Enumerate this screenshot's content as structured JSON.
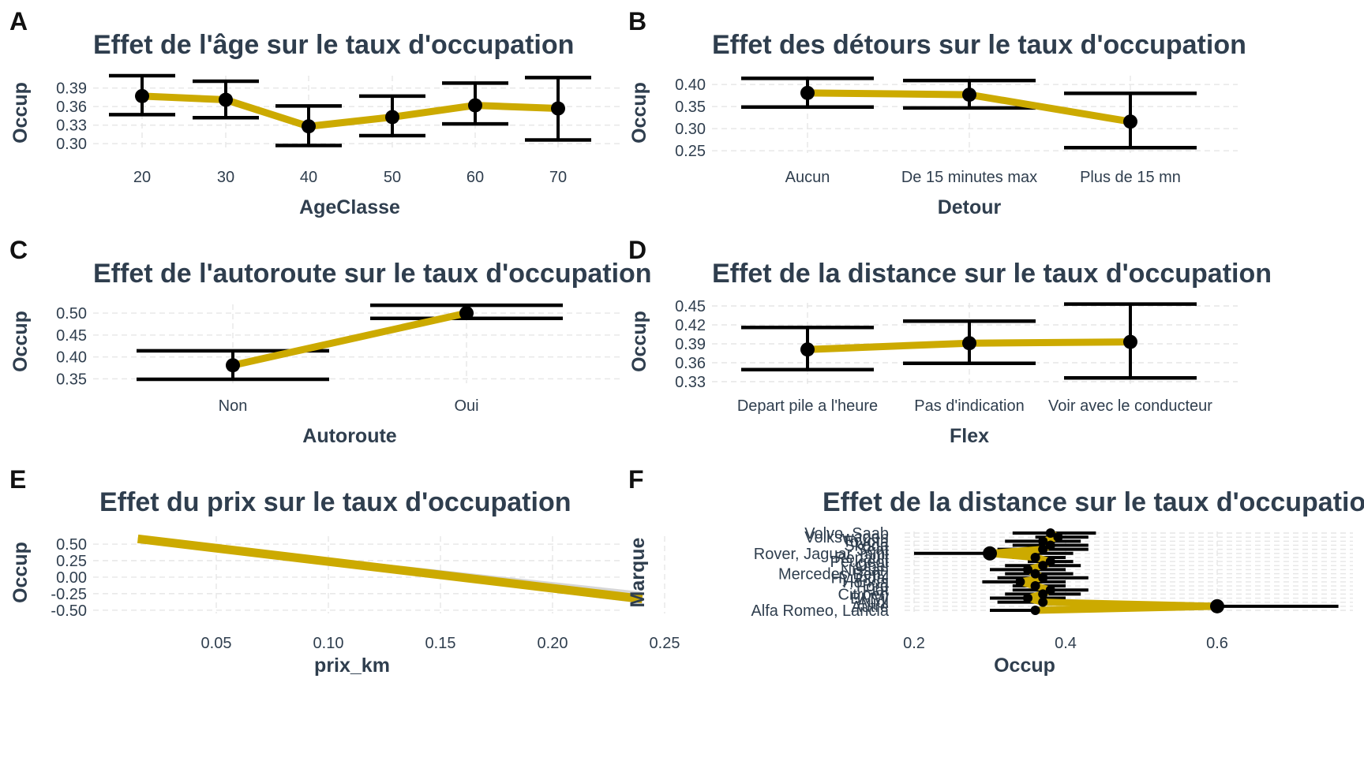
{
  "colors": {
    "line": "#ccaa00",
    "point": "#000000",
    "ribbon": "#cfcfcf",
    "text": "#2f3e4e"
  },
  "chart_data": [
    {
      "panel": "A",
      "type": "line",
      "title": "Effet de l'âge sur le taux d'occupation",
      "xlabel": "AgeClasse",
      "ylabel": "Occup",
      "categories": [
        "20",
        "30",
        "40",
        "50",
        "60",
        "70"
      ],
      "values": [
        0.377,
        0.371,
        0.328,
        0.343,
        0.362,
        0.357
      ],
      "lower": [
        0.347,
        0.342,
        0.297,
        0.313,
        0.332,
        0.306
      ],
      "upper": [
        0.41,
        0.401,
        0.361,
        0.377,
        0.398,
        0.407
      ],
      "yticks": [
        "0.30",
        "0.33",
        "0.36",
        "0.39"
      ],
      "ylim": [
        0.29,
        0.41
      ]
    },
    {
      "panel": "B",
      "type": "line",
      "title": "Effet des détours sur le taux d'occupation",
      "xlabel": "Detour",
      "ylabel": "Occup",
      "categories": [
        "Aucun",
        "De 15 minutes max",
        "Plus de 15 mn"
      ],
      "values": [
        0.381,
        0.377,
        0.316
      ],
      "lower": [
        0.349,
        0.347,
        0.257
      ],
      "upper": [
        0.414,
        0.409,
        0.38
      ],
      "yticks": [
        "0.25",
        "0.30",
        "0.35",
        "0.40"
      ],
      "ylim": [
        0.245,
        0.42
      ]
    },
    {
      "panel": "C",
      "type": "line",
      "title": "Effet de l'autoroute sur le taux d'occupation",
      "xlabel": "Autoroute",
      "ylabel": "Occup",
      "categories": [
        "Non",
        "Oui"
      ],
      "values": [
        0.381,
        0.5
      ],
      "lower": [
        0.349,
        0.488
      ],
      "upper": [
        0.414,
        0.518
      ],
      "yticks": [
        "0.35",
        "0.40",
        "0.45",
        "0.50"
      ],
      "ylim": [
        0.34,
        0.52
      ]
    },
    {
      "panel": "D",
      "type": "line",
      "title": "Effet de la distance sur le taux d'occupation",
      "xlabel": "Flex",
      "ylabel": "Occup",
      "categories": [
        "Depart pile a l'heure",
        "Pas d'indication",
        "Voir avec le conducteur"
      ],
      "values": [
        0.381,
        0.391,
        0.393
      ],
      "lower": [
        0.349,
        0.359,
        0.336
      ],
      "upper": [
        0.416,
        0.426,
        0.453
      ],
      "yticks": [
        "0.33",
        "0.36",
        "0.39",
        "0.42",
        "0.45"
      ],
      "ylim": [
        0.325,
        0.455
      ]
    },
    {
      "panel": "E",
      "type": "line",
      "title": "Effet du prix sur le taux d'occupation",
      "xlabel": "prix_km",
      "ylabel": "Occup",
      "x": [
        0.015,
        0.24
      ],
      "y": [
        0.58,
        -0.33
      ],
      "ribbon_upper": [
        0.6,
        -0.22
      ],
      "ribbon_lower": [
        0.56,
        -0.4
      ],
      "xticks": [
        "0.05",
        "0.10",
        "0.15",
        "0.20",
        "0.25"
      ],
      "yticks": [
        "-0.50",
        "-0.25",
        "0.00",
        "0.25",
        "0.50"
      ],
      "xlim": [
        0.0,
        0.25
      ],
      "ylim": [
        -0.55,
        0.62
      ]
    },
    {
      "panel": "F",
      "type": "line",
      "title": "Effet de la distance sur le taux d'occupation",
      "xlabel": "Occup",
      "ylabel": "Marque",
      "categories": [
        "Alfa Romeo, Lancia",
        "Autre",
        "Audi",
        "BMW",
        "Citroen",
        "Fiat",
        "Ford",
        "Honda",
        "Hyundai",
        "Mercedes-Benz",
        "Nissan",
        "Opel",
        "Peugeot",
        "Renault",
        "Rover, Jaguar, mini",
        "Seat",
        "Skoda",
        "Toyota",
        "Volkswagen",
        "Volvo, Saab"
      ],
      "visible_labels": [
        "Volvo, Saab",
        "Volkswagen",
        "Toyota",
        "Skoda",
        "Seat",
        "Rover, Jaguar, mini",
        "Renault",
        "Peugeot",
        "Opel",
        "Nissan",
        "Mercedes-Benz",
        "Hyundai",
        "Honda",
        "Ford",
        "Fiat",
        "Citroen",
        "BMW",
        "Audi",
        "Autre",
        "Alfa Romeo, Lancia"
      ],
      "values": [
        0.36,
        0.6,
        0.37,
        0.35,
        0.37,
        0.38,
        0.36,
        0.34,
        0.37,
        0.36,
        0.35,
        0.37,
        0.38,
        0.36,
        0.3,
        0.37,
        0.38,
        0.37,
        0.39,
        0.38
      ],
      "lower": [
        0.3,
        0.5,
        0.31,
        0.3,
        0.32,
        0.33,
        0.33,
        0.29,
        0.31,
        0.32,
        0.3,
        0.32,
        0.35,
        0.33,
        0.2,
        0.31,
        0.33,
        0.32,
        0.36,
        0.33
      ],
      "upper": [
        0.42,
        0.76,
        0.43,
        0.4,
        0.42,
        0.43,
        0.4,
        0.4,
        0.43,
        0.41,
        0.4,
        0.42,
        0.41,
        0.4,
        0.41,
        0.43,
        0.43,
        0.42,
        0.43,
        0.44
      ],
      "xticks": [
        "0.2",
        "0.4",
        "0.6"
      ],
      "xlim": [
        0.18,
        0.78
      ]
    }
  ]
}
